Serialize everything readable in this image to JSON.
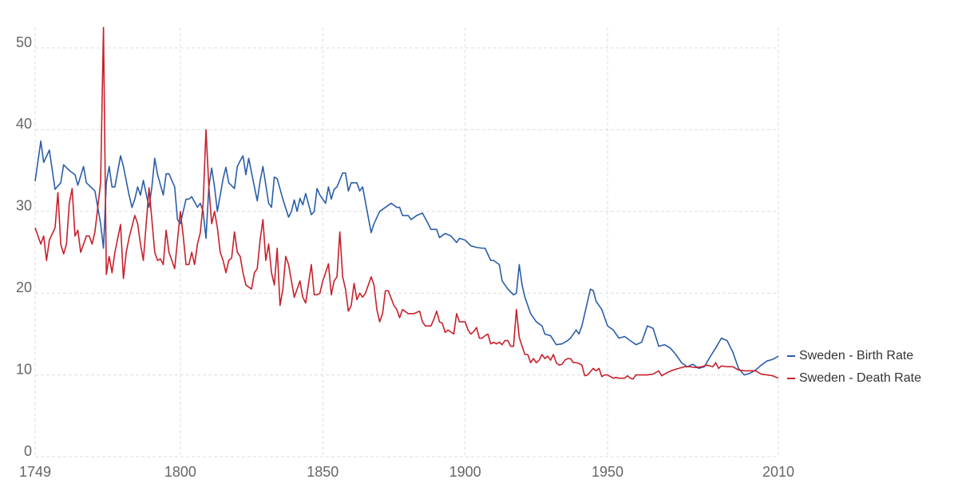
{
  "chart_data": {
    "type": "line",
    "xlim": [
      1749,
      2010
    ],
    "xticks": [
      1749,
      1800,
      1850,
      1900,
      1950,
      2010
    ],
    "ylim": [
      0,
      52.5
    ],
    "yticks": [
      0,
      10,
      20,
      30,
      40,
      50
    ],
    "grid": true,
    "legend": "right",
    "series": [
      {
        "name": "Sweden - Birth Rate",
        "color": "#2a5ea8",
        "x": [
          1749,
          1751,
          1752,
          1754,
          1756,
          1758,
          1759,
          1761,
          1763,
          1764,
          1766,
          1767,
          1770,
          1771,
          1772,
          1773,
          1774,
          1775,
          1776,
          1777,
          1779,
          1780,
          1782,
          1783,
          1784,
          1785,
          1786,
          1787,
          1789,
          1790,
          1791,
          1792,
          1794,
          1795,
          1796,
          1798,
          1799,
          1800,
          1802,
          1803,
          1804,
          1806,
          1807,
          1808,
          1809,
          1810,
          1811,
          1812,
          1813,
          1815,
          1816,
          1817,
          1819,
          1820,
          1821,
          1822,
          1823,
          1824,
          1826,
          1827,
          1828,
          1829,
          1831,
          1832,
          1833,
          1834,
          1836,
          1838,
          1839,
          1840,
          1841,
          1842,
          1843,
          1844,
          1846,
          1847,
          1848,
          1849,
          1851,
          1852,
          1853,
          1854,
          1855,
          1857,
          1858,
          1859,
          1860,
          1862,
          1863,
          1864,
          1867,
          1868,
          1870,
          1872,
          1874,
          1876,
          1877,
          1878,
          1880,
          1881,
          1883,
          1885,
          1887,
          1888,
          1890,
          1891,
          1893,
          1895,
          1897,
          1898,
          1900,
          1902,
          1904,
          1906,
          1907,
          1909,
          1910,
          1912,
          1913,
          1915,
          1917,
          1918,
          1919,
          1920,
          1921,
          1923,
          1925,
          1927,
          1928,
          1930,
          1932,
          1934,
          1936,
          1937,
          1938,
          1939,
          1940,
          1941,
          1942,
          1944,
          1945,
          1946,
          1948,
          1950,
          1952,
          1954,
          1956,
          1958,
          1960,
          1962,
          1964,
          1966,
          1968,
          1970,
          1972,
          1974,
          1976,
          1978,
          1980,
          1982,
          1984,
          1986,
          1988,
          1990,
          1992,
          1994,
          1996,
          1998,
          2000,
          2002,
          2004,
          2006,
          2008,
          2010
        ],
        "values": [
          33.7,
          38.6,
          36,
          37.5,
          32.7,
          33.5,
          35.7,
          35,
          34.5,
          33.2,
          35.5,
          33.5,
          32.5,
          30.5,
          28.5,
          25.5,
          33.5,
          35.5,
          33,
          33,
          36.8,
          35.5,
          32,
          30.5,
          31.5,
          33,
          32,
          33.8,
          30.5,
          33,
          36.5,
          34.5,
          32,
          34.6,
          34.6,
          33,
          29,
          28.5,
          31.5,
          31.5,
          31.8,
          30.5,
          31,
          30,
          26.7,
          33,
          35.3,
          33,
          30,
          34,
          35.4,
          33.5,
          32.8,
          35.5,
          36.2,
          36.8,
          34.5,
          36.5,
          33,
          31.3,
          33.7,
          35.5,
          31,
          30.5,
          34.2,
          34,
          31.5,
          29.3,
          30,
          31.4,
          30,
          31.6,
          30.8,
          32.2,
          29.6,
          30,
          32.8,
          32,
          31,
          33,
          31.5,
          32.7,
          33,
          34.7,
          34.7,
          32.5,
          33.5,
          33.5,
          32.5,
          33,
          27.4,
          28.5,
          30,
          30.5,
          31,
          30.5,
          30.5,
          29.5,
          29.5,
          29,
          29.5,
          29.8,
          28.5,
          27.8,
          27.8,
          26.8,
          27.3,
          27,
          26.2,
          26.7,
          26.5,
          25.8,
          25.6,
          25.5,
          25.5,
          24,
          24,
          23.5,
          21.5,
          20.5,
          19.8,
          20,
          23.5,
          21,
          19.5,
          17.5,
          16.5,
          16,
          15,
          14.8,
          13.7,
          13.8,
          14.2,
          14.5,
          15,
          15.5,
          15,
          16,
          17.5,
          20.5,
          20.3,
          19,
          18,
          16,
          15.5,
          14.5,
          14.7,
          14.2,
          13.7,
          14,
          16,
          15.7,
          13.5,
          13.7,
          13.3,
          12.5,
          11.5,
          11,
          11.3,
          10.8,
          11,
          12.2,
          13.3,
          14.5,
          14.2,
          12.8,
          10.8,
          10,
          10.2,
          10.6,
          11.2,
          11.7,
          11.9,
          12.3
        ]
      },
      {
        "name": "Sweden - Death Rate",
        "color": "#c8202b",
        "x": [
          1749,
          1750,
          1751,
          1752,
          1753,
          1754,
          1756,
          1757,
          1758,
          1759,
          1760,
          1761,
          1762,
          1763,
          1764,
          1765,
          1767,
          1768,
          1769,
          1770,
          1772,
          1773,
          1774,
          1775,
          1776,
          1777,
          1779,
          1780,
          1781,
          1782,
          1784,
          1785,
          1786,
          1787,
          1789,
          1790,
          1791,
          1792,
          1793,
          1794,
          1795,
          1796,
          1797,
          1798,
          1800,
          1801,
          1802,
          1803,
          1804,
          1805,
          1806,
          1807,
          1808,
          1809,
          1810,
          1811,
          1812,
          1813,
          1814,
          1815,
          1816,
          1817,
          1818,
          1819,
          1820,
          1821,
          1822,
          1823,
          1825,
          1826,
          1827,
          1828,
          1829,
          1830,
          1831,
          1832,
          1833,
          1834,
          1835,
          1836,
          1837,
          1838,
          1839,
          1840,
          1841,
          1842,
          1843,
          1844,
          1846,
          1847,
          1848,
          1849,
          1850,
          1851,
          1852,
          1853,
          1854,
          1855,
          1856,
          1857,
          1858,
          1859,
          1860,
          1861,
          1862,
          1863,
          1864,
          1865,
          1867,
          1868,
          1869,
          1870,
          1871,
          1872,
          1873,
          1875,
          1876,
          1877,
          1878,
          1880,
          1882,
          1884,
          1885,
          1886,
          1888,
          1889,
          1890,
          1891,
          1892,
          1893,
          1894,
          1896,
          1897,
          1898,
          1900,
          1901,
          1902,
          1903,
          1904,
          1905,
          1906,
          1907,
          1908,
          1909,
          1910,
          1911,
          1912,
          1913,
          1914,
          1915,
          1916,
          1917,
          1918,
          1919,
          1920,
          1921,
          1922,
          1923,
          1924,
          1925,
          1926,
          1927,
          1928,
          1929,
          1930,
          1931,
          1932,
          1933,
          1934,
          1935,
          1936,
          1937,
          1938,
          1939,
          1940,
          1941,
          1942,
          1943,
          1944,
          1945,
          1946,
          1947,
          1948,
          1949,
          1950,
          1952,
          1953,
          1954,
          1956,
          1957,
          1958,
          1959,
          1960,
          1962,
          1964,
          1966,
          1968,
          1969,
          1971,
          1973,
          1975,
          1977,
          1979,
          1981,
          1983,
          1985,
          1987,
          1988,
          1989,
          1990,
          1992,
          1994,
          1996,
          1998,
          2000,
          2002,
          2004,
          2006,
          2008,
          2010
        ],
        "values": [
          28,
          27,
          26,
          27,
          24,
          26.5,
          28,
          32.3,
          26,
          24.8,
          26,
          31,
          32.8,
          27,
          27.7,
          25,
          27,
          27,
          26,
          27.5,
          33.5,
          52.5,
          22.3,
          24.5,
          22.5,
          25,
          28.4,
          21.8,
          25,
          26.8,
          29.5,
          28.5,
          26,
          24,
          32.9,
          29,
          25,
          24,
          24.2,
          23.5,
          27.7,
          25,
          24,
          23,
          30,
          27,
          23.5,
          23.5,
          25,
          23.5,
          26,
          27.4,
          31,
          40,
          33,
          28.5,
          30,
          28,
          25,
          24,
          22.5,
          24,
          24.3,
          27.5,
          25,
          24.5,
          22.5,
          21,
          20.5,
          22.5,
          23,
          26.5,
          29,
          24,
          26,
          22.5,
          21,
          25.5,
          18.5,
          20.5,
          24.5,
          23.5,
          21.5,
          19.5,
          20.5,
          21.5,
          19.5,
          18.8,
          23.5,
          19.8,
          19.8,
          20,
          21.5,
          22.5,
          23.6,
          19.8,
          21.5,
          22,
          27.5,
          22,
          20.5,
          17.8,
          18.5,
          21.2,
          19.2,
          20,
          19.5,
          20,
          22,
          21,
          18,
          16.5,
          17.5,
          20.3,
          20.3,
          18.5,
          18,
          17,
          18,
          17.5,
          17.5,
          17.8,
          16.5,
          16,
          16,
          16.8,
          17.8,
          16.5,
          16.3,
          15.2,
          15.5,
          15,
          17.5,
          16.5,
          16.5,
          15.5,
          15,
          15.3,
          15.8,
          14.5,
          14.5,
          14.8,
          15,
          13.8,
          14,
          13.8,
          14,
          13.7,
          14.2,
          14.2,
          13.5,
          13.5,
          18,
          14.6,
          13.5,
          12.5,
          12.5,
          11.5,
          12,
          11.5,
          11.8,
          12.5,
          12,
          12.3,
          11.8,
          12.5,
          11.5,
          11.2,
          11.3,
          11.8,
          12,
          12,
          11.5,
          11.5,
          11.4,
          11.2,
          9.9,
          10,
          10.4,
          10.8,
          10.5,
          10.8,
          9.8,
          10,
          10,
          9.6,
          9.7,
          9.6,
          9.6,
          9.9,
          9.6,
          9.5,
          10,
          10,
          10,
          10.1,
          10.5,
          9.9,
          10.3,
          10.6,
          10.8,
          11,
          11,
          10.9,
          11,
          11.2,
          11,
          11.5,
          10.8,
          11.1,
          11,
          11,
          10.6,
          10.5,
          10.5,
          10.5,
          10.1,
          10,
          9.9,
          9.6
        ]
      }
    ]
  }
}
